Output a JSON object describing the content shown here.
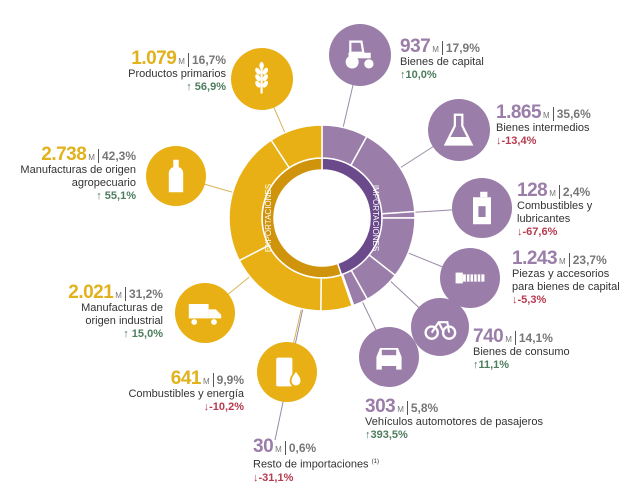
{
  "colors": {
    "exports": "#e8b014",
    "exports_dark": "#d0930c",
    "imports": "#9a7ea9",
    "imports_dark": "#6b4a8c",
    "up": "#4e7d5e",
    "down": "#b73a4f"
  },
  "ring": {
    "exports_label": "EXPORTACIONES",
    "imports_label": "IMPORTACIONES"
  },
  "unit": "M",
  "exports": [
    {
      "value": "1.079",
      "share": "16,7%",
      "label": "Productos primarios",
      "change": "56,9%",
      "dir": "up",
      "icon": "wheat-icon",
      "amount": 1079
    },
    {
      "value": "2.738",
      "share": "42,3%",
      "label": "Manufacturas de origen agropecuario",
      "change": "55,1%",
      "dir": "up",
      "icon": "bottle-icon",
      "amount": 2738
    },
    {
      "value": "2.021",
      "share": "31,2%",
      "label": "Manufacturas de origen industrial",
      "change": "15,0%",
      "dir": "up",
      "icon": "truck-icon",
      "amount": 2021
    },
    {
      "value": "641",
      "share": "9,9%",
      "label": "Combustibles y energía",
      "change": "-10,2%",
      "dir": "down",
      "icon": "oil-barrel-icon",
      "amount": 641
    }
  ],
  "imports": [
    {
      "value": "937",
      "share": "17,9%",
      "label": "Bienes de capital",
      "change": "10,0%",
      "dir": "up",
      "icon": "tractor-icon",
      "amount": 937
    },
    {
      "value": "1.865",
      "share": "35,6%",
      "label": "Bienes intermedios",
      "change": "-13,4%",
      "dir": "down",
      "icon": "flask-icon",
      "amount": 1865
    },
    {
      "value": "128",
      "share": "2,4%",
      "label": "Combustibles y lubricantes",
      "change": "-67,6%",
      "dir": "down",
      "icon": "jerrycan-icon",
      "amount": 128
    },
    {
      "value": "1.243",
      "share": "23,7%",
      "label": "Piezas y accesorios para bienes de capital",
      "change": "-5,3%",
      "dir": "down",
      "icon": "screw-icon",
      "amount": 1243
    },
    {
      "value": "740",
      "share": "14,1%",
      "label": "Bienes de consumo",
      "change": "11,1%",
      "dir": "up",
      "icon": "bicycle-icon",
      "amount": 740
    },
    {
      "value": "303",
      "share": "5,8%",
      "label": "Vehículos automotores de pasajeros",
      "change": "393,5%",
      "dir": "up",
      "icon": "car-icon",
      "amount": 303
    },
    {
      "value": "30",
      "share": "0,6%",
      "label": "Resto de importaciones",
      "footnote": "(1)",
      "change": "-31,1%",
      "dir": "down",
      "icon": "none",
      "amount": 30
    }
  ],
  "arrows": {
    "up": "↑",
    "down": "↓"
  }
}
